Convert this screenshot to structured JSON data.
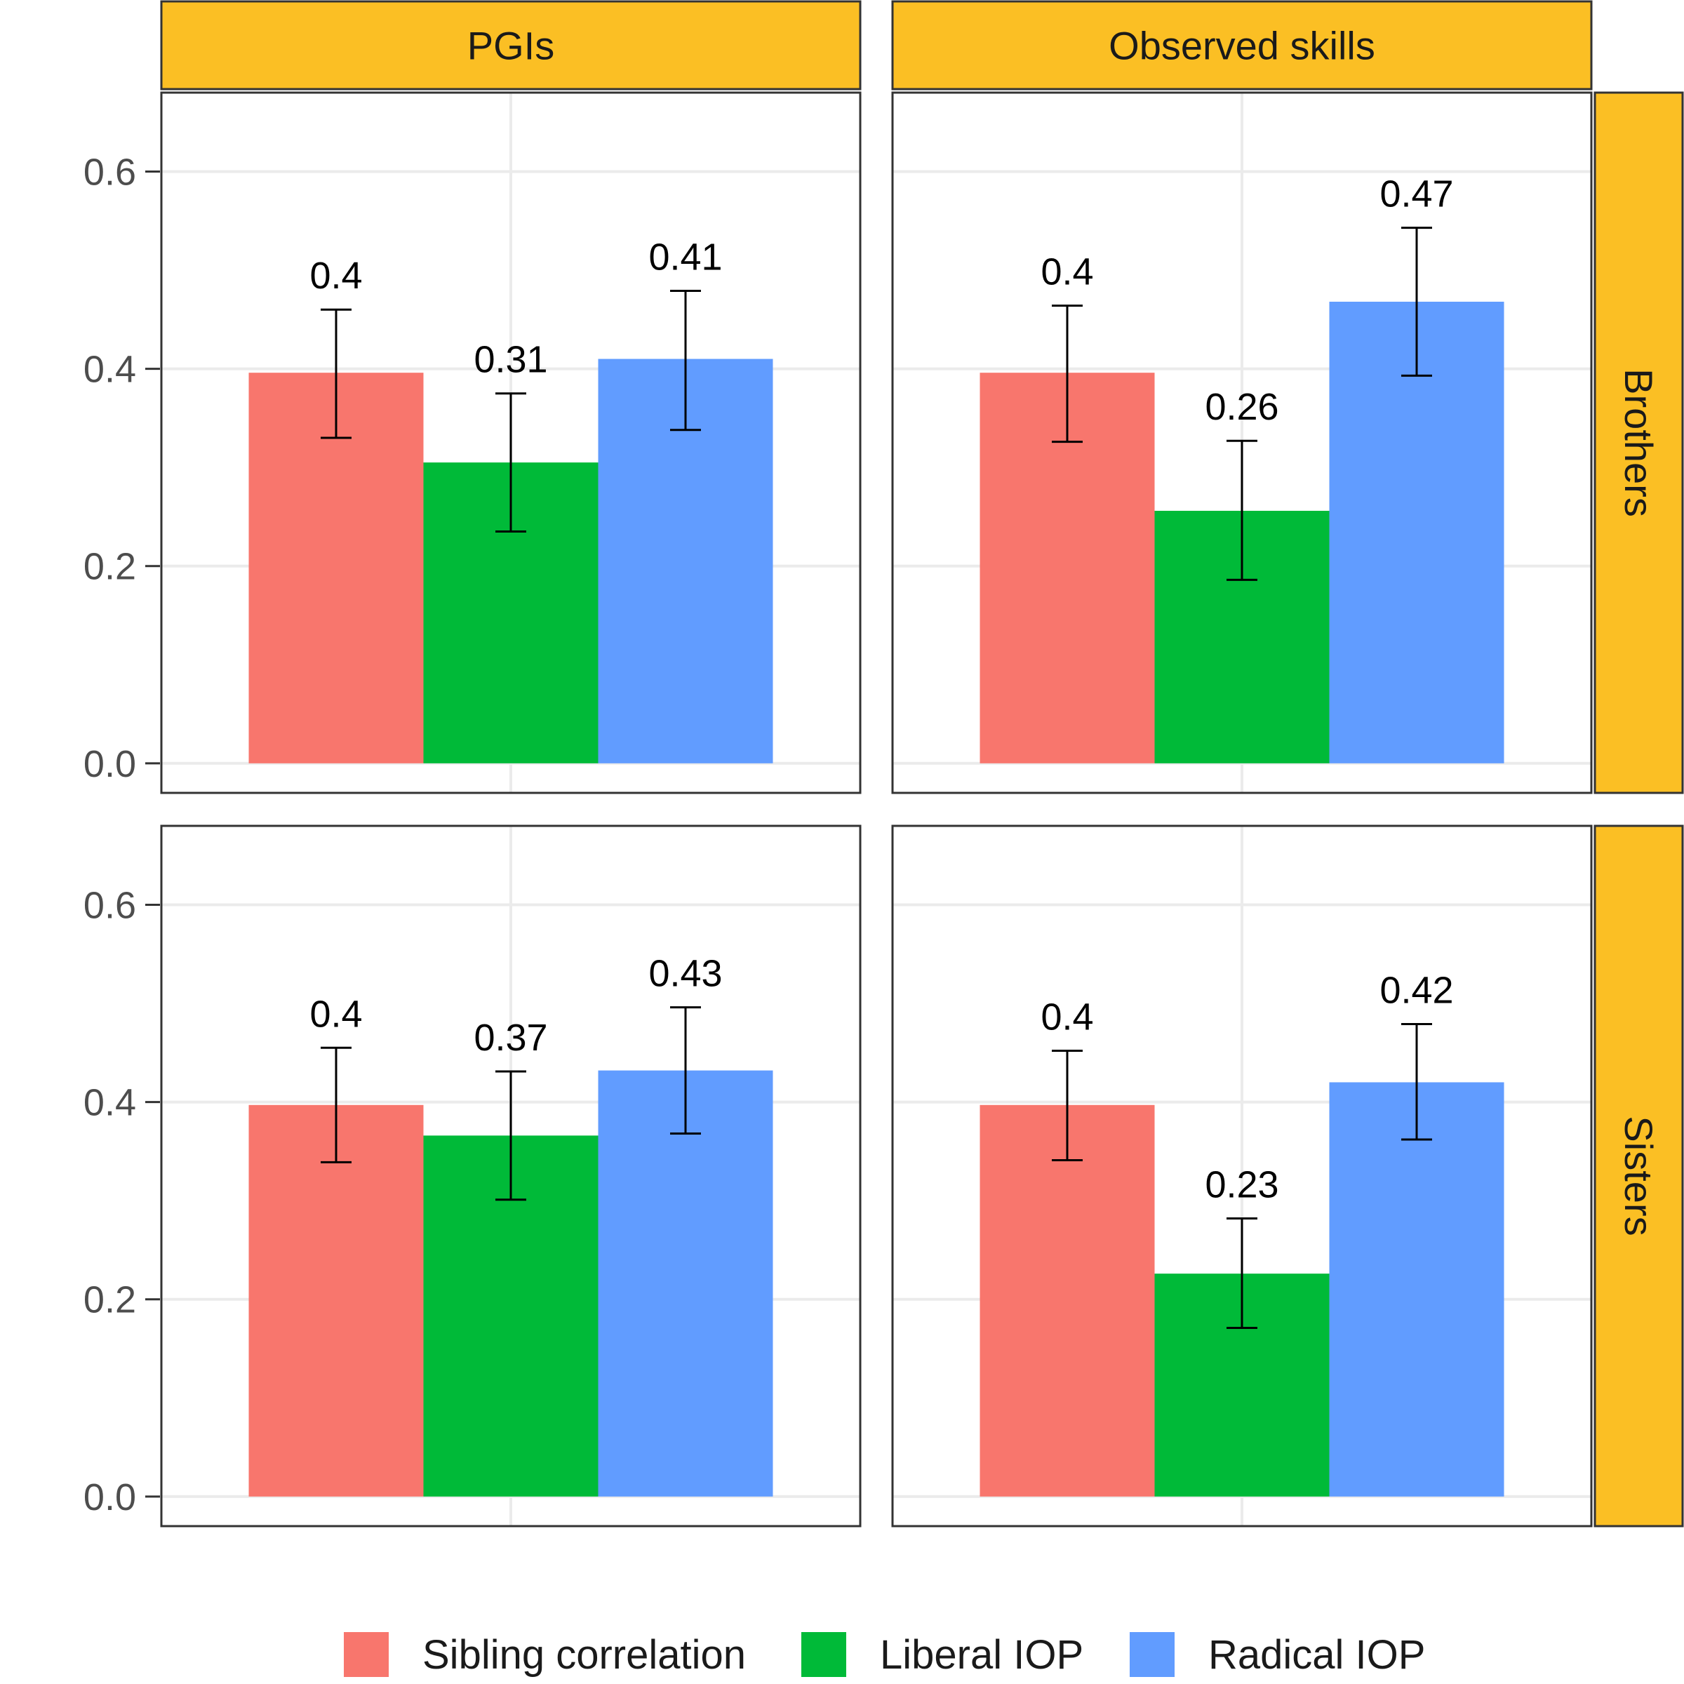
{
  "chart_data": {
    "type": "bar",
    "facet_columns": [
      "PGIs",
      "Observed skills"
    ],
    "facet_rows": [
      "Brothers",
      "Sisters"
    ],
    "series_names": [
      "Sibling correlation",
      "Liberal IOP",
      "Radical IOP"
    ],
    "colors": {
      "Sibling correlation": "#F8766D",
      "Liberal IOP": "#00BA38",
      "Radical IOP": "#619CFF",
      "strip_fill": "#FBBF24"
    },
    "ylim": [
      -0.03,
      0.68
    ],
    "yticks": [
      0.0,
      0.2,
      0.4,
      0.6
    ],
    "ytick_labels": [
      "0.0",
      "0.2",
      "0.4",
      "0.6"
    ],
    "grid": true,
    "legend_position": "bottom",
    "panels": [
      {
        "row": "Brothers",
        "col": "PGIs",
        "bars": [
          {
            "series": "Sibling correlation",
            "value": 0.396,
            "label": "0.4",
            "ci": [
              0.33,
              0.46
            ]
          },
          {
            "series": "Liberal IOP",
            "value": 0.305,
            "label": "0.31",
            "ci": [
              0.235,
              0.375
            ]
          },
          {
            "series": "Radical IOP",
            "value": 0.41,
            "label": "0.41",
            "ci": [
              0.338,
              0.479
            ]
          }
        ]
      },
      {
        "row": "Brothers",
        "col": "Observed skills",
        "bars": [
          {
            "series": "Sibling correlation",
            "value": 0.396,
            "label": "0.4",
            "ci": [
              0.326,
              0.464
            ]
          },
          {
            "series": "Liberal IOP",
            "value": 0.256,
            "label": "0.26",
            "ci": [
              0.186,
              0.327
            ]
          },
          {
            "series": "Radical IOP",
            "value": 0.468,
            "label": "0.47",
            "ci": [
              0.393,
              0.543
            ]
          }
        ]
      },
      {
        "row": "Sisters",
        "col": "PGIs",
        "bars": [
          {
            "series": "Sibling correlation",
            "value": 0.397,
            "label": "0.4",
            "ci": [
              0.339,
              0.455
            ]
          },
          {
            "series": "Liberal IOP",
            "value": 0.366,
            "label": "0.37",
            "ci": [
              0.301,
              0.431
            ]
          },
          {
            "series": "Radical IOP",
            "value": 0.432,
            "label": "0.43",
            "ci": [
              0.368,
              0.496
            ]
          }
        ]
      },
      {
        "row": "Sisters",
        "col": "Observed skills",
        "bars": [
          {
            "series": "Sibling correlation",
            "value": 0.397,
            "label": "0.4",
            "ci": [
              0.341,
              0.452
            ]
          },
          {
            "series": "Liberal IOP",
            "value": 0.226,
            "label": "0.23",
            "ci": [
              0.171,
              0.282
            ]
          },
          {
            "series": "Radical IOP",
            "value": 0.42,
            "label": "0.42",
            "ci": [
              0.362,
              0.479
            ]
          }
        ]
      }
    ]
  }
}
